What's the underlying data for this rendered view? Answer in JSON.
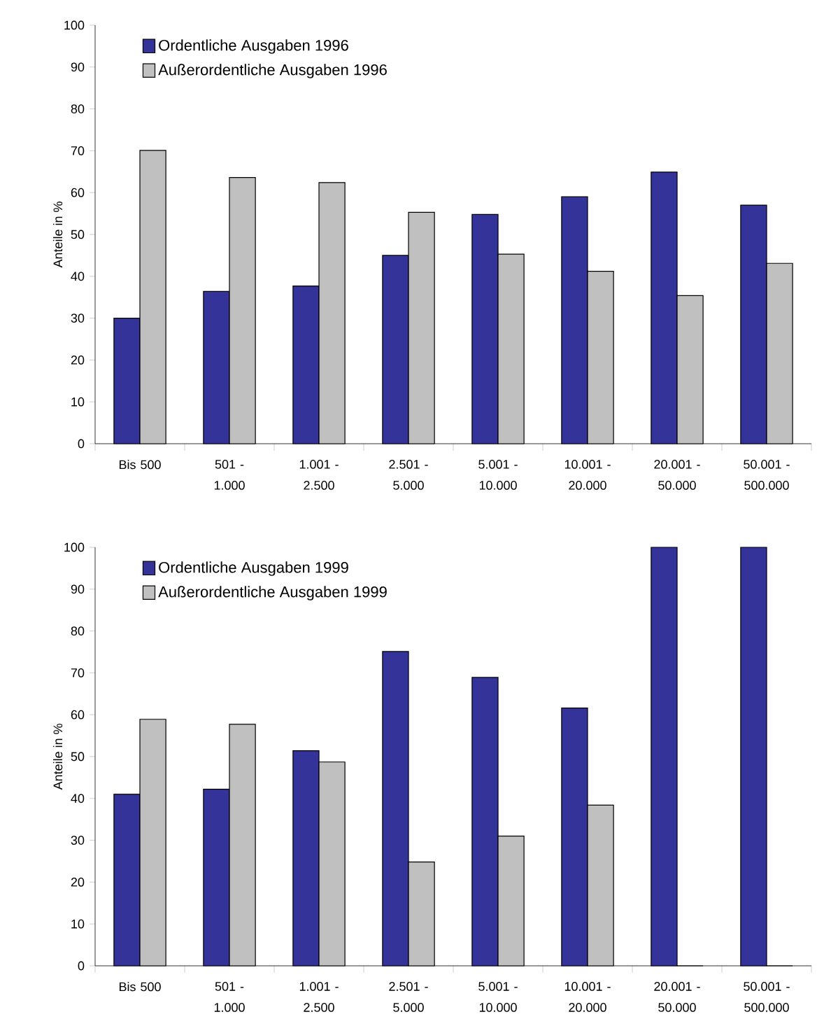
{
  "chart_data": [
    {
      "type": "bar",
      "ylabel": "Anteile in %",
      "categories": [
        "Bis 500",
        "501 - 1.000",
        "1.001 - 2.500",
        "2.501 - 5.000",
        "5.001 - 10.000",
        "10.001 - 20.000",
        "20.001 - 50.000",
        "50.001 - 500.000"
      ],
      "series": [
        {
          "name": "Ordentliche Ausgaben 1996",
          "color": "#333399",
          "values": [
            30.0,
            36.4,
            37.7,
            45.0,
            54.8,
            59.0,
            64.9,
            57.0
          ]
        },
        {
          "name": "Außerordentliche Ausgaben 1996",
          "color": "#c0c0c0",
          "values": [
            70.1,
            63.6,
            62.4,
            55.3,
            45.3,
            41.2,
            35.4,
            43.1
          ]
        }
      ],
      "ylim": [
        0,
        100
      ],
      "yticks": [
        0,
        10,
        20,
        30,
        40,
        50,
        60,
        70,
        80,
        90,
        100
      ],
      "legend": "top left"
    },
    {
      "type": "bar",
      "ylabel": "Anteile in %",
      "categories": [
        "Bis 500",
        "501 - 1.000",
        "1.001 - 2.500",
        "2.501 - 5.000",
        "5.001 - 10.000",
        "10.001 - 20.000",
        "20.001 - 50.000",
        "50.001 - 500.000"
      ],
      "series": [
        {
          "name": "Ordentliche Ausgaben 1999",
          "color": "#333399",
          "values": [
            41.0,
            42.2,
            51.4,
            75.1,
            68.9,
            61.6,
            100,
            100
          ]
        },
        {
          "name": "Außerordentliche Ausgaben 1999",
          "color": "#c0c0c0",
          "values": [
            58.9,
            57.7,
            48.7,
            24.8,
            31.0,
            38.4,
            0,
            0
          ]
        }
      ],
      "ylim": [
        0,
        100
      ],
      "yticks": [
        0,
        10,
        20,
        30,
        40,
        50,
        60,
        70,
        80,
        90,
        100
      ],
      "legend": "top left"
    }
  ]
}
